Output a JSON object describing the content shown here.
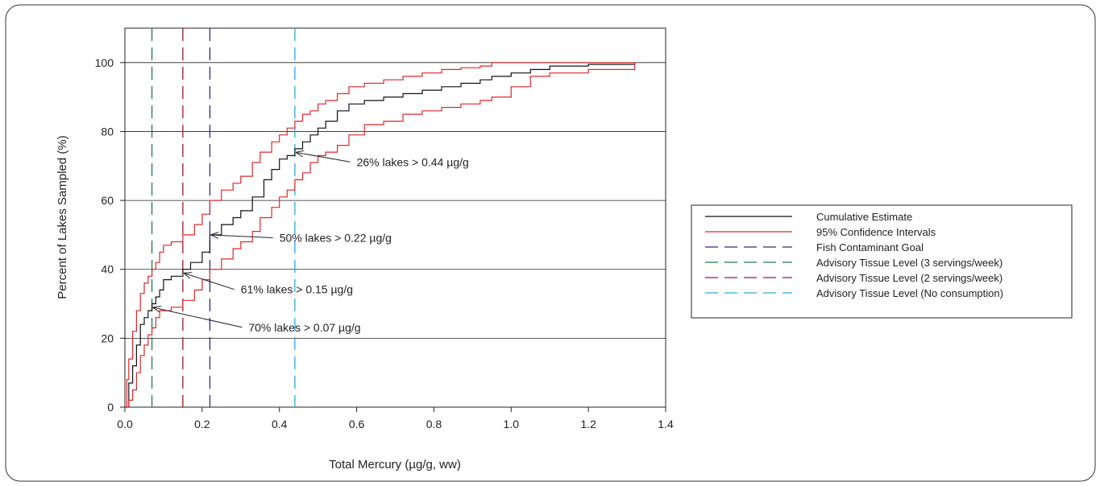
{
  "chart_data": {
    "type": "line",
    "title": "",
    "xlabel": "Total Mercury (µg/g, ww)",
    "ylabel": "Percent of Lakes Sampled (%)",
    "xlim": [
      0,
      1.4
    ],
    "ylim": [
      0,
      110
    ],
    "x_ticks": [
      0,
      0.2,
      0.4,
      0.6,
      0.8,
      1.0,
      1.2,
      1.4
    ],
    "x_tick_labels": [
      "0.0",
      "0.2",
      "0.4",
      "0.6",
      "0.8",
      "1.0",
      "1.2",
      "1.4"
    ],
    "y_ticks": [
      0,
      20,
      40,
      60,
      80,
      100
    ],
    "y_tick_labels": [
      "0",
      "20",
      "40",
      "60",
      "80",
      "100"
    ],
    "gridlines": "horizontal",
    "legend_position": "right",
    "colors": {
      "cumulative": "#111111",
      "confidence": "#e0262b",
      "fish_goal": "#2b2a83",
      "three_servings": "#1c7a4a",
      "two_servings": "#a3162a",
      "no_consumption": "#2aa9de"
    },
    "legend": [
      {
        "label": "Cumulative Estimate",
        "color": "#111111",
        "dash": "solid"
      },
      {
        "label": "95% Confidence Intervals",
        "color": "#e0262b",
        "dash": "solid"
      },
      {
        "label": "Fish Contaminant Goal",
        "color": "#2b2a83",
        "dash": "dashed"
      },
      {
        "label": "Advisory Tissue Level (3 servings/week)",
        "color": "#1c7a4a",
        "dash": "dashed"
      },
      {
        "label": "Advisory Tissue Level (2 servings/week)",
        "color": "#a3162a",
        "dash": "dashed"
      },
      {
        "label": "Advisory Tissue Level (No consumption)",
        "color": "#2aa9de",
        "dash": "dashed"
      }
    ],
    "series": [
      {
        "key": "cumulative",
        "color": "#111111",
        "x": [
          0,
          0.01,
          0.02,
          0.03,
          0.04,
          0.05,
          0.06,
          0.07,
          0.08,
          0.09,
          0.1,
          0.12,
          0.15,
          0.17,
          0.2,
          0.22,
          0.25,
          0.28,
          0.3,
          0.33,
          0.36,
          0.38,
          0.4,
          0.42,
          0.44,
          0.46,
          0.48,
          0.5,
          0.52,
          0.55,
          0.58,
          0.62,
          0.67,
          0.72,
          0.77,
          0.82,
          0.87,
          0.92,
          0.95,
          1.0,
          1.05,
          1.1,
          1.2,
          1.32
        ],
        "y": [
          0,
          7,
          12,
          18,
          24,
          26,
          28,
          30,
          32,
          34,
          37,
          38,
          40,
          42,
          45,
          50,
          53,
          55,
          57,
          61,
          66,
          69,
          72,
          73,
          75,
          77,
          79,
          81,
          83,
          86,
          88,
          89,
          90,
          91,
          92,
          93,
          94,
          95,
          96,
          97,
          98,
          99,
          99.5,
          100
        ]
      },
      {
        "key": "upper",
        "color": "#e0262b",
        "x": [
          0,
          0.005,
          0.01,
          0.02,
          0.03,
          0.04,
          0.05,
          0.06,
          0.07,
          0.08,
          0.09,
          0.1,
          0.12,
          0.15,
          0.18,
          0.2,
          0.22,
          0.25,
          0.28,
          0.3,
          0.33,
          0.35,
          0.38,
          0.4,
          0.42,
          0.44,
          0.46,
          0.48,
          0.5,
          0.52,
          0.55,
          0.58,
          0.62,
          0.67,
          0.72,
          0.77,
          0.82,
          0.87,
          0.92,
          0.95,
          1.0,
          1.05,
          1.32
        ],
        "y": [
          0,
          8,
          14,
          22,
          28,
          33,
          36,
          38,
          40,
          42,
          45,
          47,
          48,
          50,
          53,
          56,
          60,
          63,
          65,
          67,
          71,
          74,
          77,
          79,
          81,
          83,
          85,
          86,
          88,
          89,
          91,
          93,
          94,
          95,
          96,
          97,
          98,
          98.5,
          99,
          100,
          100,
          100,
          100
        ]
      },
      {
        "key": "lower",
        "color": "#e0262b",
        "x": [
          0,
          0.01,
          0.02,
          0.03,
          0.04,
          0.05,
          0.06,
          0.07,
          0.08,
          0.09,
          0.1,
          0.12,
          0.15,
          0.18,
          0.2,
          0.22,
          0.25,
          0.28,
          0.3,
          0.33,
          0.35,
          0.38,
          0.4,
          0.42,
          0.44,
          0.46,
          0.48,
          0.5,
          0.52,
          0.55,
          0.58,
          0.62,
          0.67,
          0.72,
          0.77,
          0.82,
          0.87,
          0.92,
          0.95,
          1.0,
          1.05,
          1.1,
          1.2,
          1.32
        ],
        "y": [
          0,
          2,
          5,
          10,
          15,
          18,
          21,
          23,
          26,
          28,
          28,
          29,
          31,
          34,
          37,
          40,
          43,
          46,
          48,
          51,
          55,
          58,
          61,
          63,
          66,
          68,
          71,
          73,
          74,
          76,
          79,
          82,
          83,
          85,
          86,
          87,
          88,
          89,
          90,
          93,
          96,
          97,
          98,
          100
        ]
      }
    ],
    "reference_lines": [
      {
        "key": "three_servings",
        "x": 0.07,
        "color": "#1c7a4a"
      },
      {
        "key": "two_servings",
        "x": 0.15,
        "color": "#a3162a"
      },
      {
        "key": "fish_goal",
        "x": 0.22,
        "color": "#2b2a83"
      },
      {
        "key": "no_consumption",
        "x": 0.44,
        "color": "#2aa9de"
      }
    ],
    "annotations": [
      {
        "text": "26% lakes > 0.44 µg/g",
        "point": [
          0.44,
          74
        ],
        "text_at": [
          0.6,
          70
        ]
      },
      {
        "text": "50% lakes > 0.22 µg/g",
        "point": [
          0.22,
          50
        ],
        "text_at": [
          0.4,
          48
        ]
      },
      {
        "text": "61% lakes > 0.15 µg/g",
        "point": [
          0.15,
          39
        ],
        "text_at": [
          0.3,
          33
        ]
      },
      {
        "text": "70% lakes > 0.07 µg/g",
        "point": [
          0.07,
          29
        ],
        "text_at": [
          0.32,
          22
        ]
      }
    ]
  }
}
